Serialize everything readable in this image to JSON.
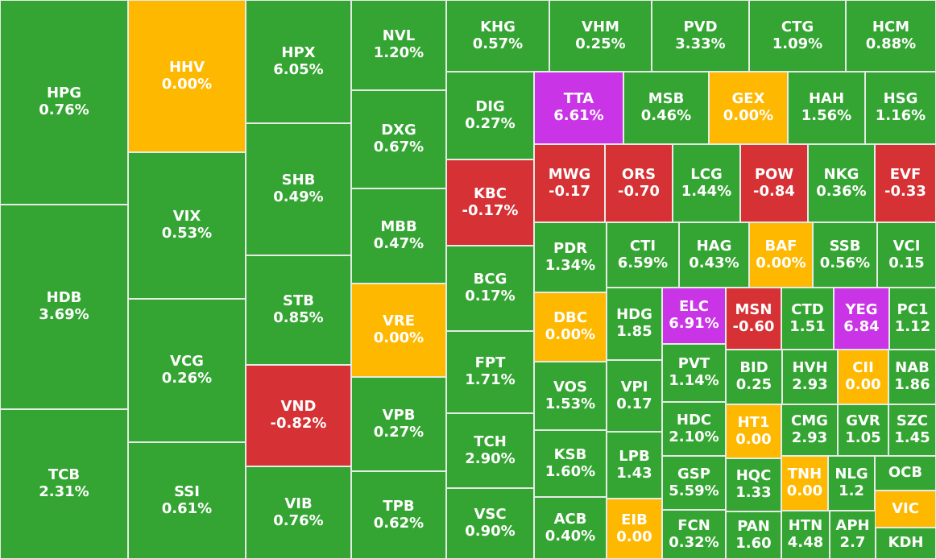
{
  "colors": {
    "up": "#34a532",
    "flat": "#ffb800",
    "down": "#d63134",
    "ceiling": "#c935e6"
  },
  "tiles": [
    {
      "symbol": "HPG",
      "change": "0.76%",
      "status": "up"
    },
    {
      "symbol": "HDB",
      "change": "3.69%",
      "status": "up"
    },
    {
      "symbol": "TCB",
      "change": "2.31%",
      "status": "up"
    },
    {
      "symbol": "HHV",
      "change": "0.00%",
      "status": "flat"
    },
    {
      "symbol": "VIX",
      "change": "0.53%",
      "status": "up"
    },
    {
      "symbol": "VCG",
      "change": "0.26%",
      "status": "up"
    },
    {
      "symbol": "SSI",
      "change": "0.61%",
      "status": "up"
    },
    {
      "symbol": "HPX",
      "change": "6.05%",
      "status": "up"
    },
    {
      "symbol": "SHB",
      "change": "0.49%",
      "status": "up"
    },
    {
      "symbol": "STB",
      "change": "0.85%",
      "status": "up"
    },
    {
      "symbol": "VND",
      "change": "-0.82%",
      "status": "down"
    },
    {
      "symbol": "VIB",
      "change": "0.76%",
      "status": "up"
    },
    {
      "symbol": "NVL",
      "change": "1.20%",
      "status": "up"
    },
    {
      "symbol": "DXG",
      "change": "0.67%",
      "status": "up"
    },
    {
      "symbol": "MBB",
      "change": "0.47%",
      "status": "up"
    },
    {
      "symbol": "VRE",
      "change": "0.00%",
      "status": "flat"
    },
    {
      "symbol": "VPB",
      "change": "0.27%",
      "status": "up"
    },
    {
      "symbol": "TPB",
      "change": "0.62%",
      "status": "up"
    },
    {
      "symbol": "KHG",
      "change": "0.57%",
      "status": "up"
    },
    {
      "symbol": "VHM",
      "change": "0.25%",
      "status": "up"
    },
    {
      "symbol": "PVD",
      "change": "3.33%",
      "status": "up"
    },
    {
      "symbol": "CTG",
      "change": "1.09%",
      "status": "up"
    },
    {
      "symbol": "HCM",
      "change": "0.88%",
      "status": "up"
    },
    {
      "symbol": "DIG",
      "change": "0.27%",
      "status": "up"
    },
    {
      "symbol": "KBC",
      "change": "-0.17%",
      "status": "down"
    },
    {
      "symbol": "BCG",
      "change": "0.17%",
      "status": "up"
    },
    {
      "symbol": "FPT",
      "change": "1.71%",
      "status": "up"
    },
    {
      "symbol": "TCH",
      "change": "2.90%",
      "status": "up"
    },
    {
      "symbol": "VSC",
      "change": "0.90%",
      "status": "up"
    },
    {
      "symbol": "TTA",
      "change": "6.61%",
      "status": "ceiling"
    },
    {
      "symbol": "MSB",
      "change": "0.46%",
      "status": "up"
    },
    {
      "symbol": "GEX",
      "change": "0.00%",
      "status": "flat"
    },
    {
      "symbol": "HAH",
      "change": "1.56%",
      "status": "up"
    },
    {
      "symbol": "HSG",
      "change": "1.16%",
      "status": "up"
    },
    {
      "symbol": "MWG",
      "change": "-0.17",
      "status": "down"
    },
    {
      "symbol": "ORS",
      "change": "-0.70",
      "status": "down"
    },
    {
      "symbol": "LCG",
      "change": "1.44%",
      "status": "up"
    },
    {
      "symbol": "POW",
      "change": "-0.84",
      "status": "down"
    },
    {
      "symbol": "NKG",
      "change": "0.36%",
      "status": "up"
    },
    {
      "symbol": "EVF",
      "change": "-0.33",
      "status": "down"
    },
    {
      "symbol": "PDR",
      "change": "1.34%",
      "status": "up"
    },
    {
      "symbol": "CTI",
      "change": "6.59%",
      "status": "up"
    },
    {
      "symbol": "HAG",
      "change": "0.43%",
      "status": "up"
    },
    {
      "symbol": "BAF",
      "change": "0.00%",
      "status": "flat"
    },
    {
      "symbol": "SSB",
      "change": "0.56%",
      "status": "up"
    },
    {
      "symbol": "VCI",
      "change": "0.15",
      "status": "up"
    },
    {
      "symbol": "DBC",
      "change": "0.00%",
      "status": "flat"
    },
    {
      "symbol": "HDG",
      "change": "1.85",
      "status": "up"
    },
    {
      "symbol": "ELC",
      "change": "6.91%",
      "status": "ceiling"
    },
    {
      "symbol": "MSN",
      "change": "-0.60",
      "status": "down"
    },
    {
      "symbol": "CTD",
      "change": "1.51",
      "status": "up"
    },
    {
      "symbol": "YEG",
      "change": "6.84",
      "status": "ceiling"
    },
    {
      "symbol": "PC1",
      "change": "1.12",
      "status": "up"
    },
    {
      "symbol": "VOS",
      "change": "1.53%",
      "status": "up"
    },
    {
      "symbol": "VPI",
      "change": "0.17",
      "status": "up"
    },
    {
      "symbol": "PVT",
      "change": "1.14%",
      "status": "up"
    },
    {
      "symbol": "BID",
      "change": "0.25",
      "status": "up"
    },
    {
      "symbol": "HVH",
      "change": "2.93",
      "status": "up"
    },
    {
      "symbol": "CII",
      "change": "0.00",
      "status": "flat"
    },
    {
      "symbol": "NAB",
      "change": "1.86",
      "status": "up"
    },
    {
      "symbol": "KSB",
      "change": "1.60%",
      "status": "up"
    },
    {
      "symbol": "LPB",
      "change": "1.43",
      "status": "up"
    },
    {
      "symbol": "HDC",
      "change": "2.10%",
      "status": "up"
    },
    {
      "symbol": "HT1",
      "change": "0.00",
      "status": "flat"
    },
    {
      "symbol": "CMG",
      "change": "2.93",
      "status": "up"
    },
    {
      "symbol": "GVR",
      "change": "1.05",
      "status": "up"
    },
    {
      "symbol": "SZC",
      "change": "1.45",
      "status": "up"
    },
    {
      "symbol": "ACB",
      "change": "0.40%",
      "status": "up"
    },
    {
      "symbol": "EIB",
      "change": "0.00",
      "status": "flat"
    },
    {
      "symbol": "GSP",
      "change": "5.59%",
      "status": "up"
    },
    {
      "symbol": "HQC",
      "change": "1.33",
      "status": "up"
    },
    {
      "symbol": "TNH",
      "change": "0.00",
      "status": "flat"
    },
    {
      "symbol": "NLG",
      "change": "1.2",
      "status": "up"
    },
    {
      "symbol": "OCB",
      "change": "",
      "status": "up"
    },
    {
      "symbol": "VIC",
      "change": "",
      "status": "flat"
    },
    {
      "symbol": "FCN",
      "change": "0.32%",
      "status": "up"
    },
    {
      "symbol": "PAN",
      "change": "1.60",
      "status": "up"
    },
    {
      "symbol": "HTN",
      "change": "4.48",
      "status": "up"
    },
    {
      "symbol": "APH",
      "change": "2.7",
      "status": "up"
    },
    {
      "symbol": "KDH",
      "change": "",
      "status": "up"
    }
  ]
}
